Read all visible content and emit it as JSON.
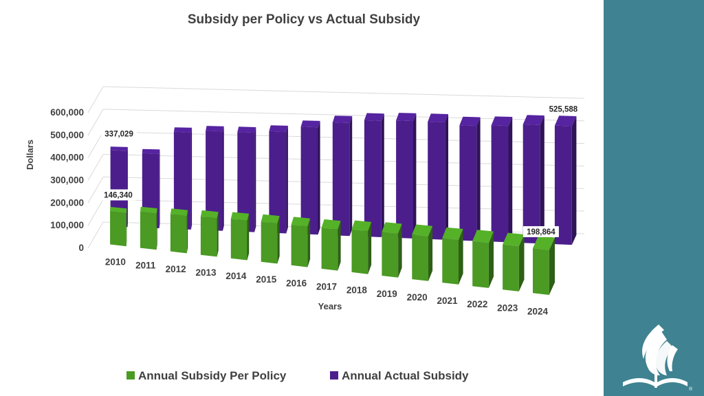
{
  "slide": {
    "background": "#ffffff",
    "sidebar_color": "#3f8291",
    "logo_icon": "church-logo-icon",
    "logo_mark": "®"
  },
  "chart_data": {
    "type": "bar",
    "title": "Subsidy per Policy vs Actual Subsidy",
    "xlabel": "Years",
    "ylabel": "Dollars",
    "ylim": [
      0,
      600000
    ],
    "yticks": [
      "0",
      "100,000",
      "200,000",
      "300,000",
      "400,000",
      "500,000",
      "600,000"
    ],
    "categories": [
      "2010",
      "2011",
      "2012",
      "2013",
      "2014",
      "2015",
      "2016",
      "2017",
      "2018",
      "2019",
      "2020",
      "2021",
      "2022",
      "2023",
      "2024"
    ],
    "series": [
      {
        "name": "Annual Subsidy Per Policy",
        "color": "#4a9a23",
        "values": [
          146340,
          160000,
          165000,
          170000,
          175000,
          178000,
          180000,
          182000,
          190000,
          195000,
          198000,
          198000,
          200000,
          200000,
          198864
        ],
        "data_labels": {
          "0": "146,340",
          "14": "198,864"
        }
      },
      {
        "name": "Annual Actual Subsidy",
        "color": "#4b1e8c",
        "values": [
          337029,
          330000,
          430000,
          440000,
          440000,
          450000,
          475000,
          500000,
          515000,
          520000,
          520000,
          510000,
          515000,
          525000,
          525588
        ],
        "data_labels": {
          "0": "337,029",
          "14": "525,588"
        }
      }
    ],
    "legend_position": "bottom",
    "grid": true
  }
}
